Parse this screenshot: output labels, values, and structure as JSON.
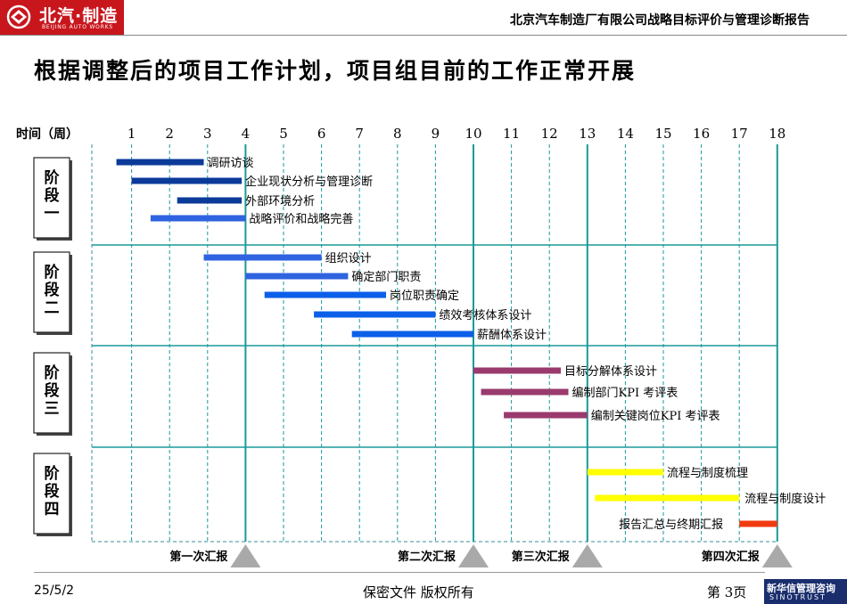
{
  "header": {
    "logo_text": "北汽·制造",
    "logo_subtext": "BEIJING AUTO WORKS",
    "report_title": "北京汽车制造厂有限公司战略目标评价与管理诊断报告"
  },
  "slide_title": "根据调整后的项目工作计划，项目组目前的工作正常开展",
  "chart_data": {
    "type": "gantt",
    "x_axis_label": "时间（周）",
    "x_ticks": [
      "1",
      "2",
      "3",
      "4",
      "5",
      "6",
      "7",
      "8",
      "9",
      "10",
      "11",
      "12",
      "13",
      "14",
      "15",
      "16",
      "17",
      "18"
    ],
    "phases": [
      {
        "label": "阶段一",
        "chars": [
          "阶",
          "段",
          "一"
        ]
      },
      {
        "label": "阶段二",
        "chars": [
          "阶",
          "段",
          "二"
        ]
      },
      {
        "label": "阶段三",
        "chars": [
          "阶",
          "段",
          "三"
        ]
      },
      {
        "label": "阶段四",
        "chars": [
          "阶",
          "段",
          "四"
        ]
      }
    ],
    "tasks": [
      {
        "name": "调研访谈",
        "phase": 0,
        "start": 0.6,
        "end": 2.9,
        "color": "#0b3a99"
      },
      {
        "name": "企业现状分析与管理诊断",
        "phase": 0,
        "start": 1.0,
        "end": 3.9,
        "color": "#0b3a99"
      },
      {
        "name": "外部环境分析",
        "phase": 0,
        "start": 2.2,
        "end": 3.9,
        "color": "#0b3a99"
      },
      {
        "name": "战略评价和战略完善",
        "phase": 0,
        "start": 1.5,
        "end": 4.0,
        "color": "#2f63e0"
      },
      {
        "name": "组织设计",
        "phase": 1,
        "start": 2.9,
        "end": 6.0,
        "color": "#2f63e0"
      },
      {
        "name": "确定部门职责",
        "phase": 1,
        "start": 4.0,
        "end": 6.7,
        "color": "#2f63e0"
      },
      {
        "name": "岗位职责确定",
        "phase": 1,
        "start": 4.5,
        "end": 7.7,
        "color": "#0c5fe8"
      },
      {
        "name": "绩效考核体系设计",
        "phase": 1,
        "start": 5.8,
        "end": 9.0,
        "color": "#0c5fe8"
      },
      {
        "name": "薪酬体系设计",
        "phase": 1,
        "start": 6.8,
        "end": 10.0,
        "color": "#0c5fe8"
      },
      {
        "name": "目标分解体系设计",
        "phase": 2,
        "start": 10.0,
        "end": 12.3,
        "color": "#9a3a6e"
      },
      {
        "name": "编制部门KPI 考评表",
        "phase": 2,
        "start": 10.2,
        "end": 12.5,
        "color": "#9a3a6e"
      },
      {
        "name": "编制关键岗位KPI 考评表",
        "phase": 2,
        "start": 10.8,
        "end": 13.0,
        "color": "#9a3a6e"
      },
      {
        "name": "流程与制度梳理",
        "phase": 3,
        "start": 13.0,
        "end": 15.0,
        "color": "#ffff00"
      },
      {
        "name": "流程与制度设计",
        "phase": 3,
        "start": 13.2,
        "end": 17.0,
        "color": "#ffff00"
      },
      {
        "name": "报告汇总与终期汇报",
        "phase": 3,
        "start": 17.0,
        "end": 18.0,
        "color": "#f03a0f"
      }
    ],
    "milestones": [
      {
        "week": 4,
        "label": "第一次汇报"
      },
      {
        "week": 10,
        "label": "第二次汇报"
      },
      {
        "week": 13,
        "label": "第三次汇报"
      },
      {
        "week": 18,
        "label": "第四次汇报"
      }
    ]
  },
  "footer": {
    "date": "25/5/2",
    "confidential": "保密文件 版权所有",
    "page": "第 3页",
    "consultant_cn": "新华信管理咨询",
    "consultant_en": "SINOTRUST"
  }
}
